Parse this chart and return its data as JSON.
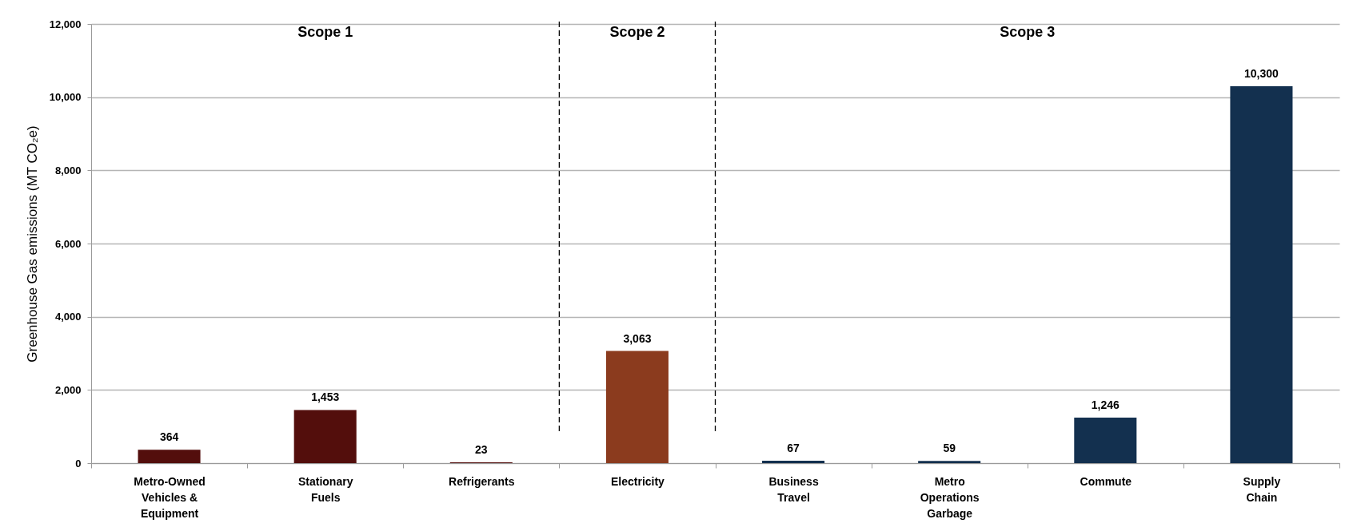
{
  "chart_data": {
    "type": "bar",
    "ylabel": "Greenhouse Gas emissions (MT CO₂e)",
    "categories": [
      "Metro-Owned Vehicles & Equipment",
      "Stationary Fuels",
      "Refrigerants",
      "Electricity",
      "Business Travel",
      "Metro Operations Garbage",
      "Commute",
      "Supply Chain"
    ],
    "values": [
      364,
      1453,
      23,
      3063,
      67,
      59,
      1246,
      10300
    ],
    "value_labels": [
      "364",
      "1,453",
      "23",
      "3,063",
      "67",
      "59",
      "1,246",
      "10,300"
    ],
    "colors": [
      "#530e0c",
      "#530e0c",
      "#530e0c",
      "#8b3b1e",
      "#13304f",
      "#13304f",
      "#13304f",
      "#13304f"
    ],
    "ylim": [
      0,
      12000
    ],
    "yticks": [
      0,
      {
        "value": 2000,
        "label": "2,000"
      },
      {
        "value": 4000,
        "label": "4,000"
      },
      {
        "value": 6000,
        "label": "6,000"
      },
      {
        "value": 8000,
        "label": "8,000"
      },
      {
        "value": 10000,
        "label": "10,000"
      },
      {
        "value": 12000,
        "label": "12,000"
      }
    ],
    "grid": "y",
    "annotations": [
      "Scope 1",
      "Scope 2",
      "Scope 3"
    ]
  }
}
